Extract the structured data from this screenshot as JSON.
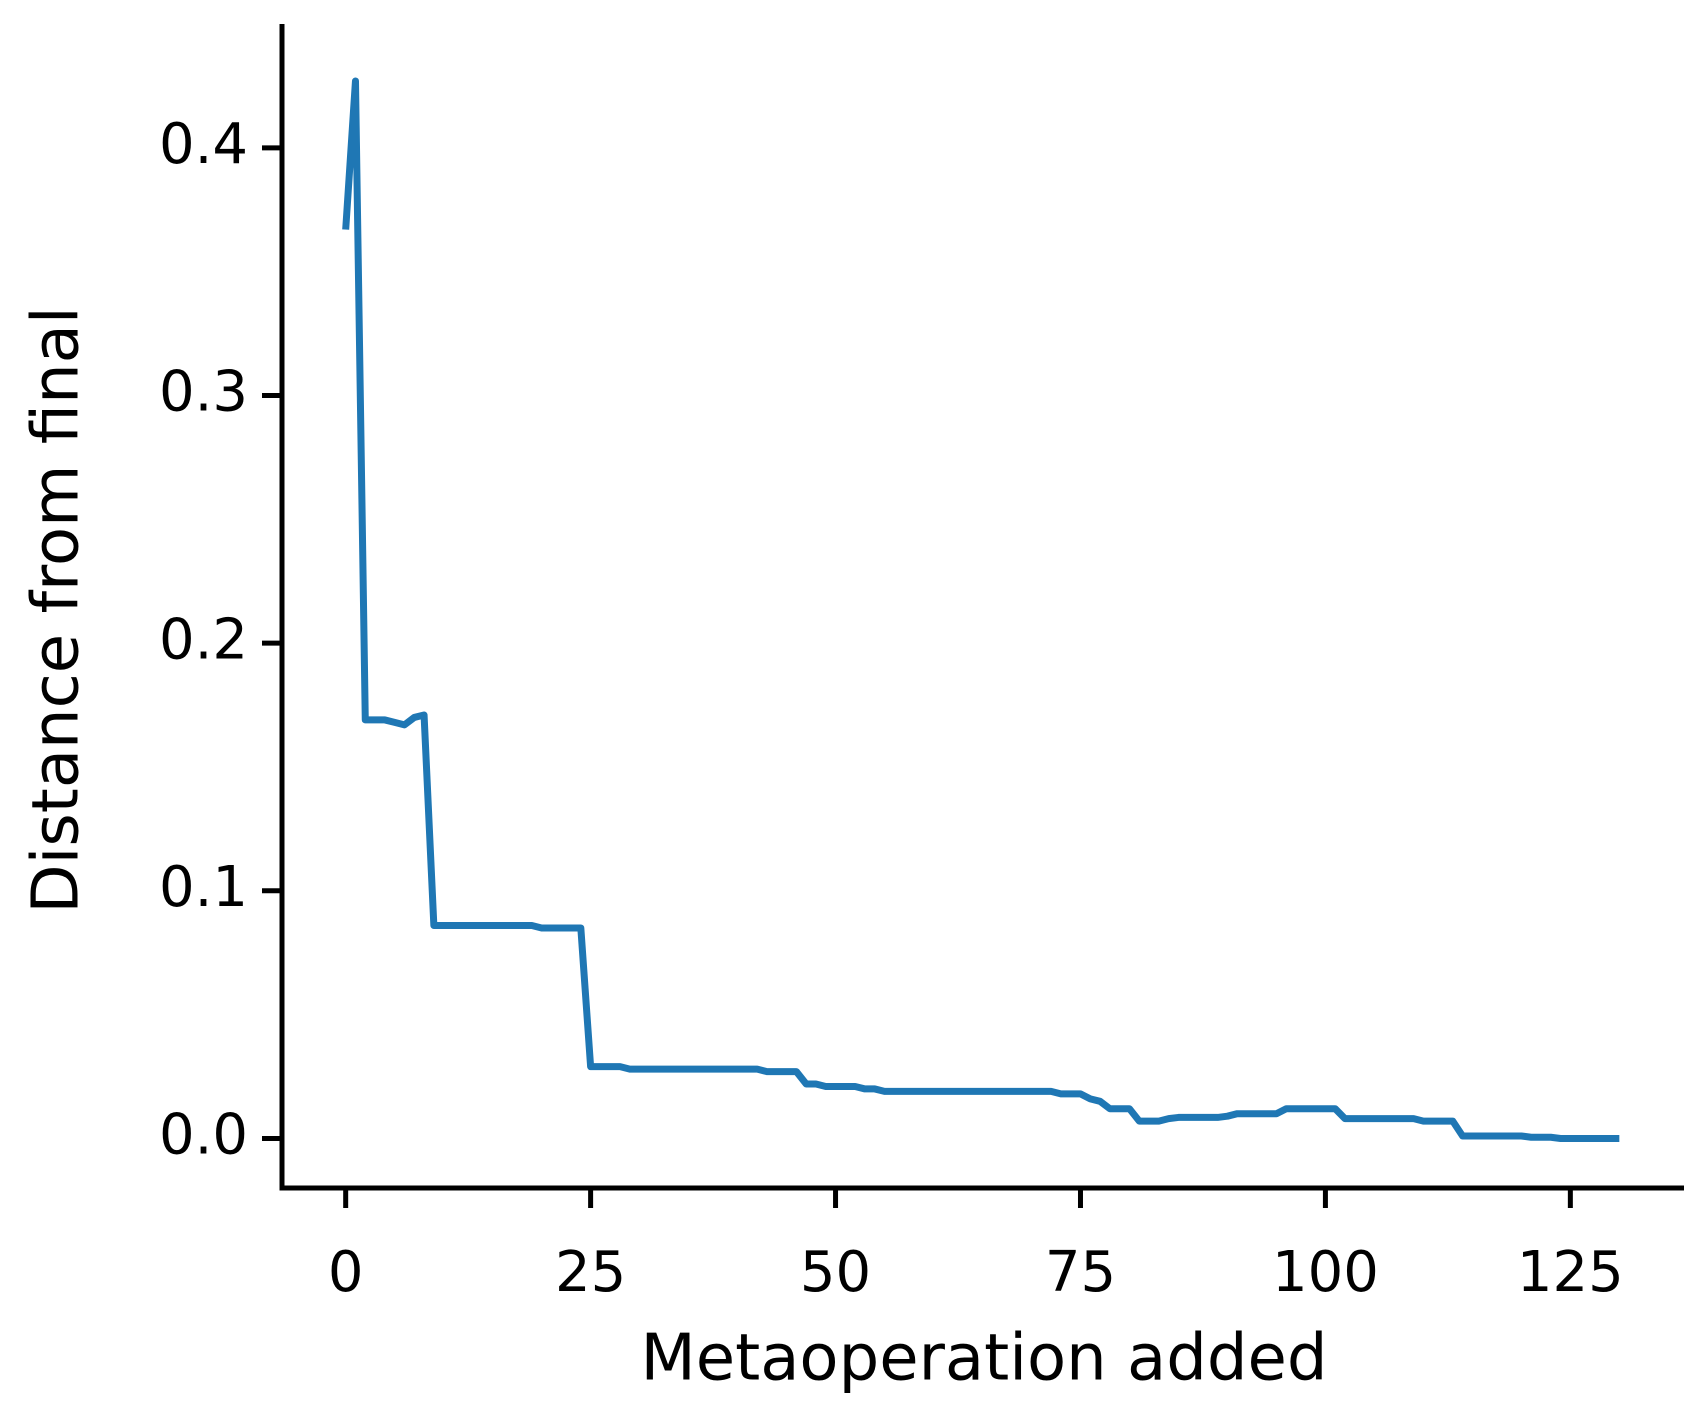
{
  "chart_data": {
    "type": "line",
    "xlabel": "Metaoperation added",
    "ylabel": "Distance from final",
    "x": [
      0,
      1,
      2,
      3,
      4,
      5,
      6,
      7,
      8,
      9,
      10,
      11,
      12,
      13,
      14,
      15,
      16,
      17,
      18,
      19,
      20,
      21,
      22,
      23,
      24,
      25,
      26,
      27,
      28,
      29,
      30,
      31,
      32,
      33,
      34,
      35,
      36,
      37,
      38,
      39,
      40,
      41,
      42,
      43,
      44,
      45,
      46,
      47,
      48,
      49,
      50,
      51,
      52,
      53,
      54,
      55,
      56,
      57,
      58,
      59,
      60,
      61,
      62,
      63,
      64,
      65,
      66,
      67,
      68,
      69,
      70,
      71,
      72,
      73,
      74,
      75,
      76,
      77,
      78,
      79,
      80,
      81,
      82,
      83,
      84,
      85,
      86,
      87,
      88,
      89,
      90,
      91,
      92,
      93,
      94,
      95,
      96,
      97,
      98,
      99,
      100,
      101,
      102,
      103,
      104,
      105,
      106,
      107,
      108,
      109,
      110,
      111,
      112,
      113,
      114,
      115,
      116,
      117,
      118,
      119,
      120,
      121,
      122,
      123,
      124,
      125,
      126,
      127,
      128,
      129,
      130
    ],
    "series": [
      {
        "name": "distance",
        "color": "#1f77b4",
        "values": [
          0.367,
          0.427,
          0.169,
          0.169,
          0.169,
          0.168,
          0.167,
          0.17,
          0.171,
          0.086,
          0.086,
          0.086,
          0.086,
          0.086,
          0.086,
          0.086,
          0.086,
          0.086,
          0.086,
          0.086,
          0.085,
          0.085,
          0.085,
          0.085,
          0.085,
          0.029,
          0.029,
          0.029,
          0.029,
          0.028,
          0.028,
          0.028,
          0.028,
          0.028,
          0.028,
          0.028,
          0.028,
          0.028,
          0.028,
          0.028,
          0.028,
          0.028,
          0.028,
          0.027,
          0.027,
          0.027,
          0.027,
          0.022,
          0.022,
          0.021,
          0.021,
          0.021,
          0.021,
          0.02,
          0.02,
          0.019,
          0.019,
          0.019,
          0.019,
          0.019,
          0.019,
          0.019,
          0.019,
          0.019,
          0.019,
          0.019,
          0.019,
          0.019,
          0.019,
          0.019,
          0.019,
          0.019,
          0.019,
          0.018,
          0.018,
          0.018,
          0.016,
          0.015,
          0.012,
          0.012,
          0.012,
          0.007,
          0.007,
          0.007,
          0.008,
          0.0085,
          0.0085,
          0.0085,
          0.0085,
          0.0085,
          0.009,
          0.01,
          0.01,
          0.01,
          0.01,
          0.01,
          0.012,
          0.012,
          0.012,
          0.012,
          0.012,
          0.012,
          0.008,
          0.008,
          0.008,
          0.008,
          0.008,
          0.008,
          0.008,
          0.008,
          0.007,
          0.007,
          0.007,
          0.007,
          0.001,
          0.001,
          0.001,
          0.001,
          0.001,
          0.001,
          0.001,
          0.0005,
          0.0005,
          0.0005,
          0,
          0,
          0,
          0,
          0,
          0,
          0
        ]
      }
    ],
    "xlim": [
      -6.5,
      136.6
    ],
    "ylim": [
      -0.02,
      0.45
    ],
    "xticks": [
      0,
      25,
      50,
      75,
      100,
      125
    ],
    "yticks": [
      {
        "value": 0,
        "label": "0.0"
      },
      0.1,
      0.2,
      0.3,
      0.4
    ]
  }
}
